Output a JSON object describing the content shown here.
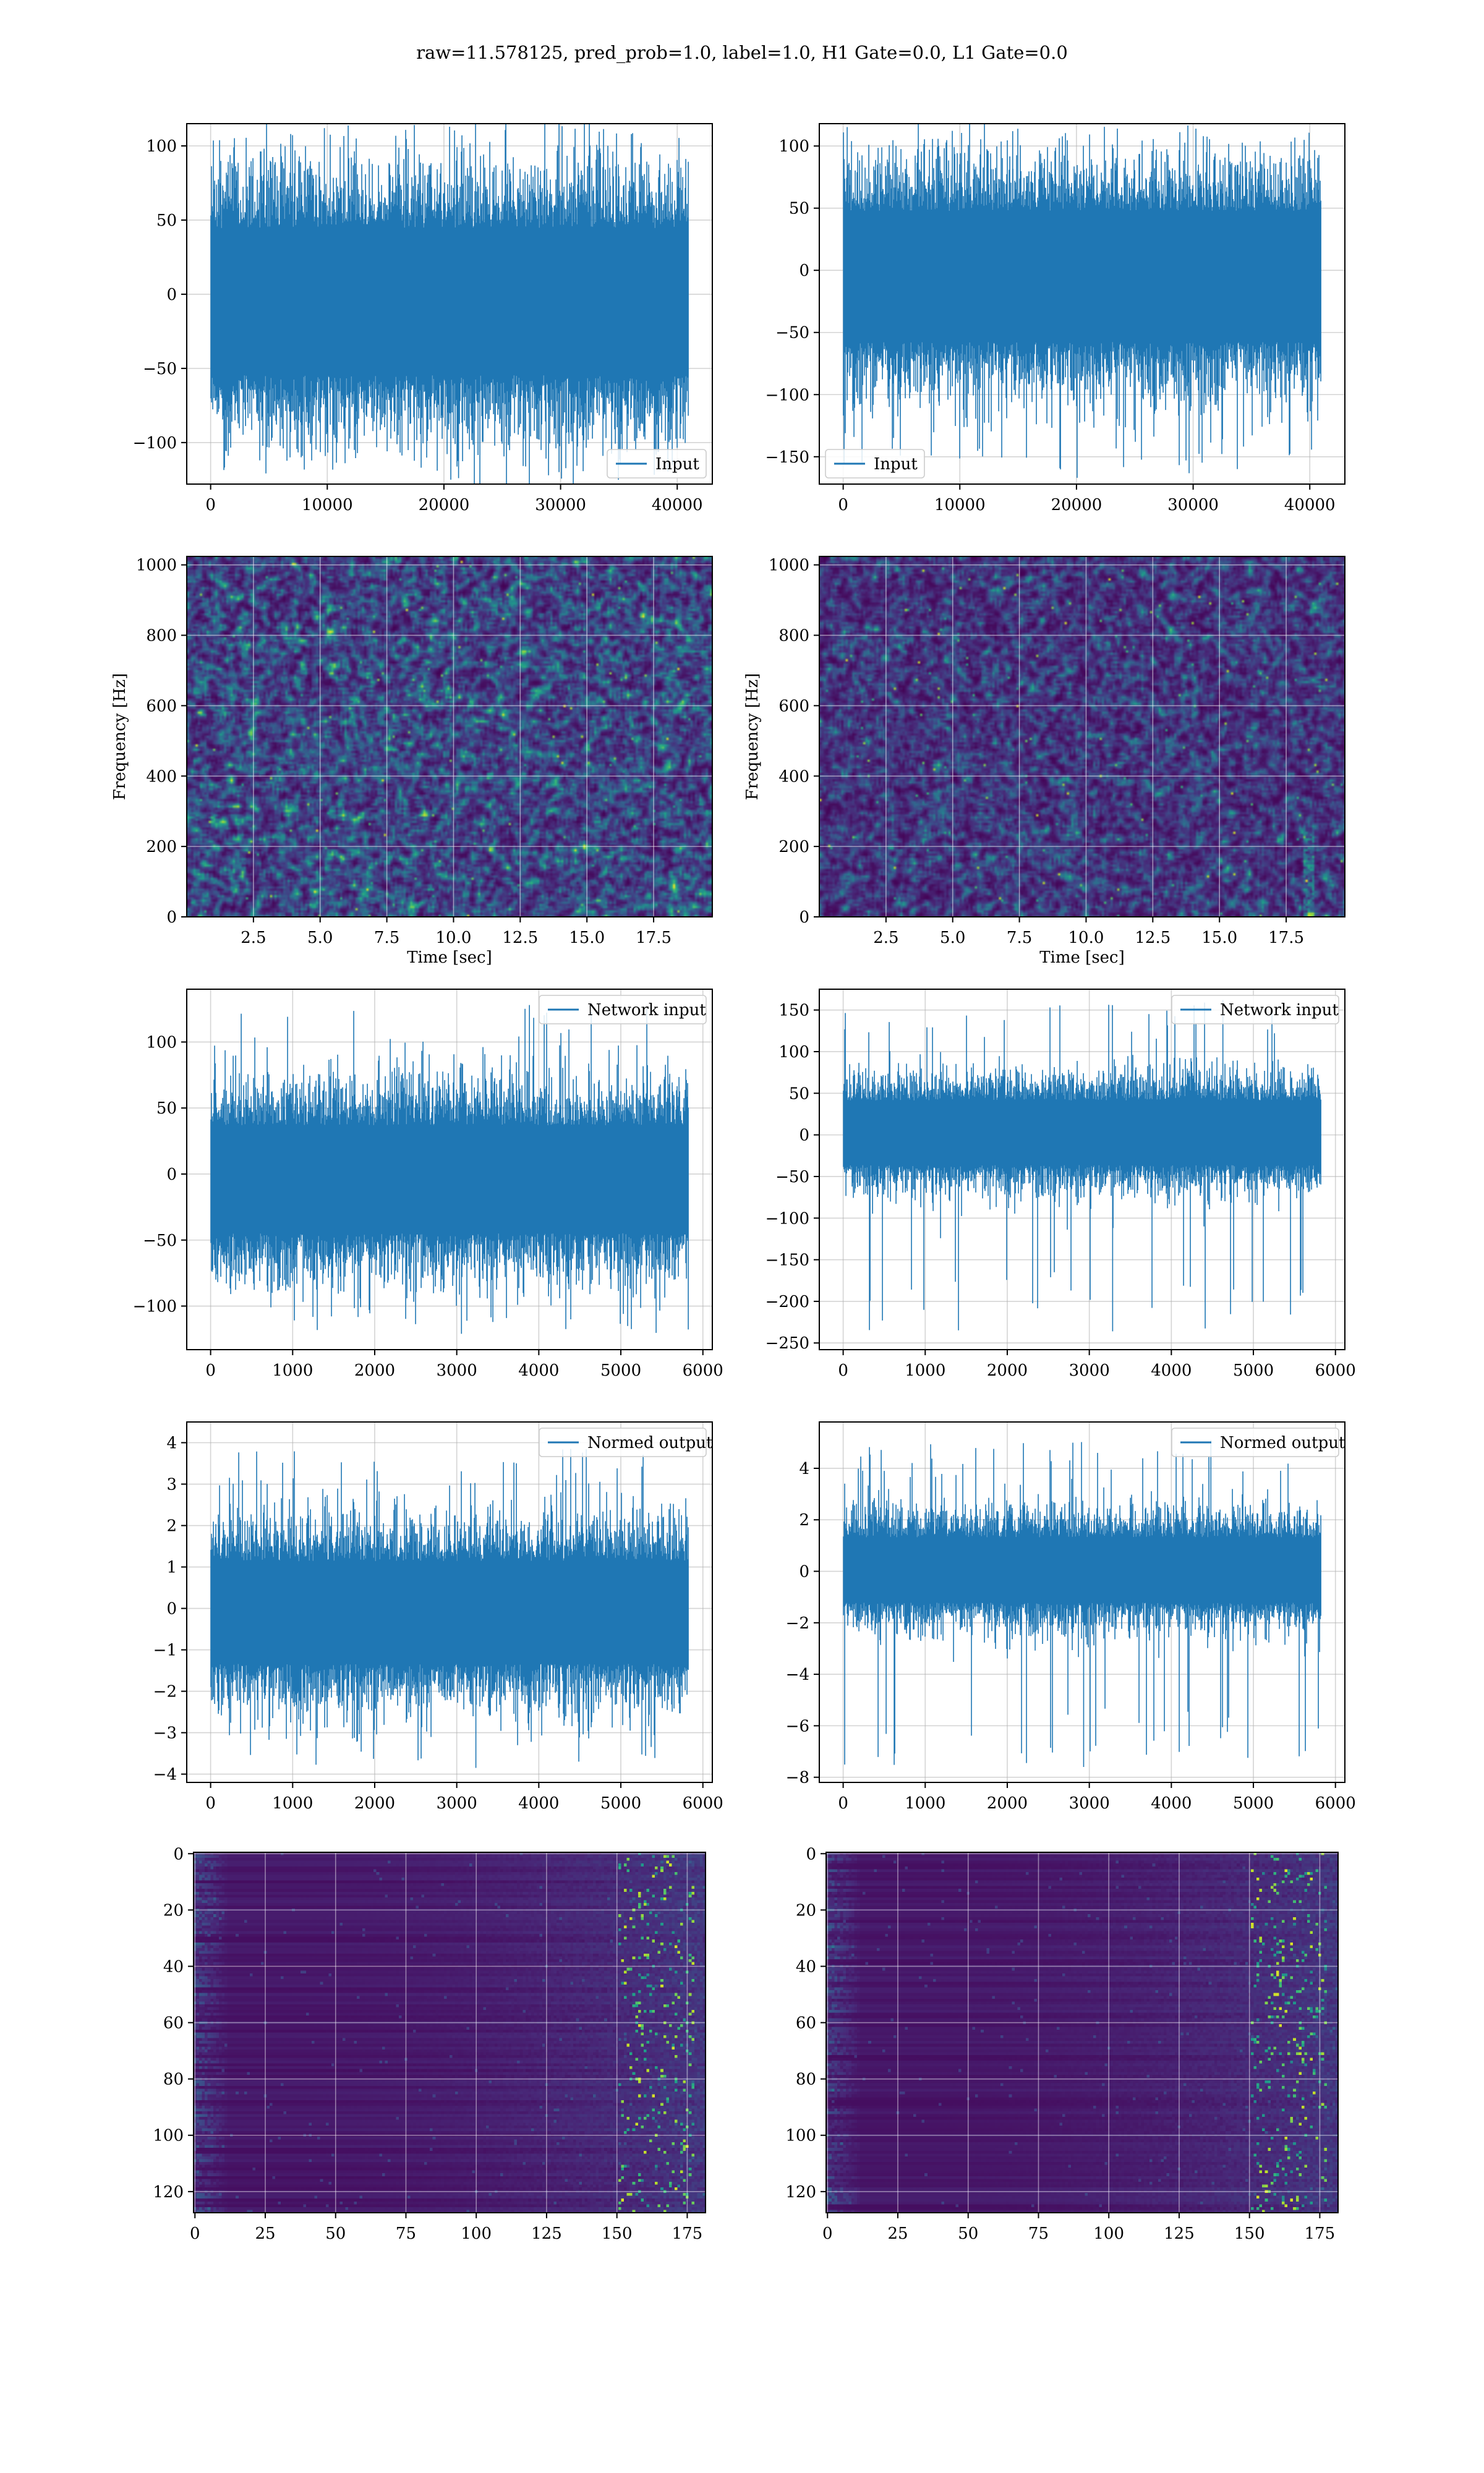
{
  "suptitle": "raw=11.578125, pred_prob=1.0, label=1.0, H1 Gate=0.0, L1 Gate=0.0",
  "colors": {
    "line": "#1f77b4",
    "grid": "#b0b0b0",
    "viridis_low": "#440154",
    "viridis_mid": "#21918c",
    "viridis_high": "#fde725"
  },
  "chart_data": [
    {
      "id": "r0c0",
      "type": "line",
      "legend": "upper-right-inside",
      "series": [
        {
          "name": "Input",
          "n_samples": 40960,
          "sample_step": 1,
          "envelope": [
            -85,
            75
          ],
          "peak_range": [
            -124,
            112
          ]
        }
      ],
      "xlim": [
        -2048,
        43008
      ],
      "ylim": [
        -128,
        115
      ],
      "xticks": [
        0,
        10000,
        20000,
        30000,
        40000
      ],
      "xticklabels": [
        "0",
        "10000",
        "20000",
        "30000",
        "40000"
      ],
      "yticks": [
        -100,
        -50,
        0,
        50,
        100
      ],
      "yticklabels": [
        "−100",
        "−50",
        "0",
        "50",
        "100"
      ],
      "legend_position": "lower-right",
      "grid": true,
      "xlabel": "",
      "ylabel": ""
    },
    {
      "id": "r0c1",
      "type": "line",
      "series": [
        {
          "name": "Input",
          "n_samples": 40960,
          "sample_step": 1,
          "envelope": [
            -90,
            80
          ],
          "peak_range": [
            -167,
            112
          ]
        }
      ],
      "xlim": [
        -2048,
        43008
      ],
      "ylim": [
        -172,
        118
      ],
      "xticks": [
        0,
        10000,
        20000,
        30000,
        40000
      ],
      "xticklabels": [
        "0",
        "10000",
        "20000",
        "30000",
        "40000"
      ],
      "yticks": [
        -150,
        -100,
        -50,
        0,
        50,
        100
      ],
      "yticklabels": [
        "−150",
        "−100",
        "−50",
        "0",
        "50",
        "100"
      ],
      "legend_position": "lower-left",
      "grid": true,
      "xlabel": "",
      "ylabel": ""
    },
    {
      "id": "r1c0",
      "type": "heatmap",
      "xlim": [
        0,
        19.7
      ],
      "ylim": [
        0,
        1024
      ],
      "xticks": [
        2.5,
        5.0,
        7.5,
        10.0,
        12.5,
        15.0,
        17.5
      ],
      "xticklabels": [
        "2.5",
        "5.0",
        "7.5",
        "10.0",
        "12.5",
        "15.0",
        "17.5"
      ],
      "yticks": [
        0,
        200,
        400,
        600,
        800,
        1000
      ],
      "yticklabels": [
        "0",
        "200",
        "400",
        "600",
        "800",
        "1000"
      ],
      "xlabel": "Time [sec]",
      "ylabel": "Frequency [Hz]",
      "grid": true,
      "colormap": "viridis"
    },
    {
      "id": "r1c1",
      "type": "heatmap",
      "xlim": [
        0,
        19.7
      ],
      "ylim": [
        0,
        1024
      ],
      "xticks": [
        2.5,
        5.0,
        7.5,
        10.0,
        12.5,
        15.0,
        17.5
      ],
      "xticklabels": [
        "2.5",
        "5.0",
        "7.5",
        "10.0",
        "12.5",
        "15.0",
        "17.5"
      ],
      "yticks": [
        0,
        200,
        400,
        600,
        800,
        1000
      ],
      "yticklabels": [
        "0",
        "200",
        "400",
        "600",
        "800",
        "1000"
      ],
      "xlabel": "Time [sec]",
      "ylabel": "Frequency [Hz]",
      "grid": true,
      "colormap": "viridis"
    },
    {
      "id": "r2c0",
      "type": "line",
      "series": [
        {
          "name": "Network input",
          "n_samples": 5824,
          "sample_step": 1,
          "envelope": [
            -70,
            62
          ],
          "peak_range": [
            -121,
            128
          ]
        }
      ],
      "xlim": [
        -291,
        6115
      ],
      "ylim": [
        -133,
        140
      ],
      "xticks": [
        0,
        1000,
        2000,
        3000,
        4000,
        5000,
        6000
      ],
      "xticklabels": [
        "0",
        "1000",
        "2000",
        "3000",
        "4000",
        "5000",
        "6000"
      ],
      "yticks": [
        -100,
        -50,
        0,
        50,
        100
      ],
      "yticklabels": [
        "−100",
        "−50",
        "0",
        "50",
        "100"
      ],
      "legend_position": "upper-right",
      "grid": true,
      "xlabel": "",
      "ylabel": ""
    },
    {
      "id": "r2c1",
      "type": "line",
      "series": [
        {
          "name": "Network input",
          "n_samples": 5824,
          "sample_step": 1,
          "envelope": [
            -60,
            65
          ],
          "peak_range": [
            -236,
            162
          ]
        }
      ],
      "xlim": [
        -291,
        6115
      ],
      "ylim": [
        -258,
        175
      ],
      "xticks": [
        0,
        1000,
        2000,
        3000,
        4000,
        5000,
        6000
      ],
      "xticklabels": [
        "0",
        "1000",
        "2000",
        "3000",
        "4000",
        "5000",
        "6000"
      ],
      "yticks": [
        -250,
        -200,
        -150,
        -100,
        -50,
        0,
        50,
        100,
        150
      ],
      "yticklabels": [
        "−250",
        "−200",
        "−150",
        "−100",
        "−50",
        "0",
        "50",
        "100",
        "150"
      ],
      "legend_position": "upper-right",
      "grid": true,
      "xlabel": "",
      "ylabel": ""
    },
    {
      "id": "r3c0",
      "type": "line",
      "series": [
        {
          "name": "Normed output",
          "n_samples": 5824,
          "sample_step": 1,
          "envelope": [
            -2.1,
            1.9
          ],
          "peak_range": [
            -3.85,
            3.85
          ]
        }
      ],
      "xlim": [
        -291,
        6115
      ],
      "ylim": [
        -4.2,
        4.5
      ],
      "xticks": [
        0,
        1000,
        2000,
        3000,
        4000,
        5000,
        6000
      ],
      "xticklabels": [
        "0",
        "1000",
        "2000",
        "3000",
        "4000",
        "5000",
        "6000"
      ],
      "yticks": [
        -4,
        -3,
        -2,
        -1,
        0,
        1,
        2,
        3,
        4
      ],
      "yticklabels": [
        "−4",
        "−3",
        "−2",
        "−1",
        "0",
        "1",
        "2",
        "3",
        "4"
      ],
      "legend_position": "upper-right",
      "grid": true,
      "xlabel": "",
      "ylabel": ""
    },
    {
      "id": "r3c1",
      "type": "line",
      "series": [
        {
          "name": "Normed output",
          "n_samples": 5824,
          "sample_step": 1,
          "envelope": [
            -2.0,
            2.1
          ],
          "peak_range": [
            -7.6,
            5.1
          ]
        }
      ],
      "xlim": [
        -291,
        6115
      ],
      "ylim": [
        -8.2,
        5.8
      ],
      "xticks": [
        0,
        1000,
        2000,
        3000,
        4000,
        5000,
        6000
      ],
      "xticklabels": [
        "0",
        "1000",
        "2000",
        "3000",
        "4000",
        "5000",
        "6000"
      ],
      "yticks": [
        -8,
        -6,
        -4,
        -2,
        0,
        2,
        4
      ],
      "yticklabels": [
        "−8",
        "−6",
        "−4",
        "−2",
        "0",
        "2",
        "4"
      ],
      "legend_position": "upper-right",
      "grid": true,
      "xlabel": "",
      "ylabel": ""
    },
    {
      "id": "r4c0",
      "type": "heatmap",
      "xlim": [
        -0.5,
        181.5
      ],
      "ylim": [
        127.5,
        -0.5
      ],
      "y_inverted": true,
      "xticks": [
        0,
        25,
        50,
        75,
        100,
        125,
        150,
        175
      ],
      "xticklabels": [
        "0",
        "25",
        "50",
        "75",
        "100",
        "125",
        "150",
        "175"
      ],
      "yticks": [
        0,
        20,
        40,
        60,
        80,
        100,
        120
      ],
      "yticklabels": [
        "0",
        "20",
        "40",
        "60",
        "80",
        "100",
        "120"
      ],
      "xlabel": "",
      "ylabel": "",
      "grid": true,
      "colormap": "viridis"
    },
    {
      "id": "r4c1",
      "type": "heatmap",
      "xlim": [
        -0.5,
        181.5
      ],
      "ylim": [
        127.5,
        -0.5
      ],
      "y_inverted": true,
      "xticks": [
        0,
        25,
        50,
        75,
        100,
        125,
        150,
        175
      ],
      "xticklabels": [
        "0",
        "25",
        "50",
        "75",
        "100",
        "125",
        "150",
        "175"
      ],
      "yticks": [
        0,
        20,
        40,
        60,
        80,
        100,
        120
      ],
      "yticklabels": [
        "0",
        "20",
        "40",
        "60",
        "80",
        "100",
        "120"
      ],
      "xlabel": "",
      "ylabel": "",
      "grid": true,
      "colormap": "viridis"
    }
  ]
}
